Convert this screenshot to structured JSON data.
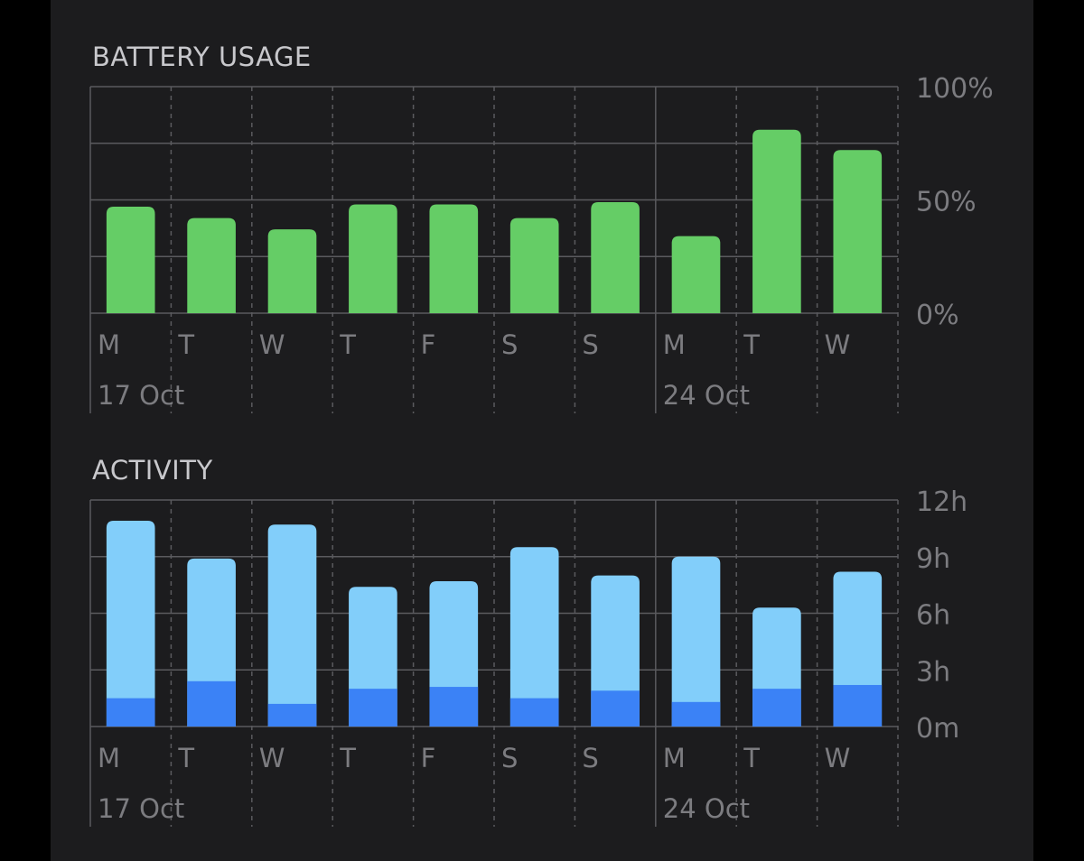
{
  "colors": {
    "background": "#1c1c1e",
    "grid": "#5a5a5e",
    "label": "#7c7c80",
    "battery_bar": "#65cd66",
    "activity_screen_on": "#82cefa",
    "activity_screen_off": "#3b82f6"
  },
  "battery": {
    "title": "BATTERY USAGE"
  },
  "activity": {
    "title": "ACTIVITY"
  },
  "chart_data": [
    {
      "type": "bar",
      "title": "BATTERY USAGE",
      "categories": [
        "M",
        "T",
        "W",
        "T",
        "F",
        "S",
        "S",
        "M",
        "T",
        "W"
      ],
      "week_labels": [
        {
          "label": "17 Oct",
          "start_index": 0
        },
        {
          "label": "24 Oct",
          "start_index": 7
        }
      ],
      "values": [
        47,
        42,
        37,
        48,
        48,
        42,
        49,
        34,
        81,
        72
      ],
      "ylim": [
        0,
        100
      ],
      "y_tick_labels": [
        "100%",
        "50%",
        "0%"
      ],
      "y_tick_values": [
        100,
        50,
        0
      ],
      "grid": true,
      "axis_position": "right"
    },
    {
      "type": "bar",
      "stacked": true,
      "title": "ACTIVITY",
      "categories": [
        "M",
        "T",
        "W",
        "T",
        "F",
        "S",
        "S",
        "M",
        "T",
        "W"
      ],
      "week_labels": [
        {
          "label": "17 Oct",
          "start_index": 0
        },
        {
          "label": "24 Oct",
          "start_index": 7
        }
      ],
      "series": [
        {
          "values": [
            1.5,
            2.4,
            1.2,
            2.0,
            2.1,
            1.5,
            1.9,
            1.3,
            2.0,
            2.2
          ]
        },
        {
          "values": [
            9.4,
            6.5,
            9.5,
            5.4,
            5.6,
            8.0,
            6.1,
            7.7,
            4.3,
            6.0
          ]
        }
      ],
      "ylim": [
        0,
        12
      ],
      "y_tick_labels": [
        "12h",
        "9h",
        "6h",
        "3h",
        "0m"
      ],
      "y_tick_values": [
        12,
        9,
        6,
        3,
        0
      ],
      "grid": true,
      "axis_position": "right"
    }
  ]
}
